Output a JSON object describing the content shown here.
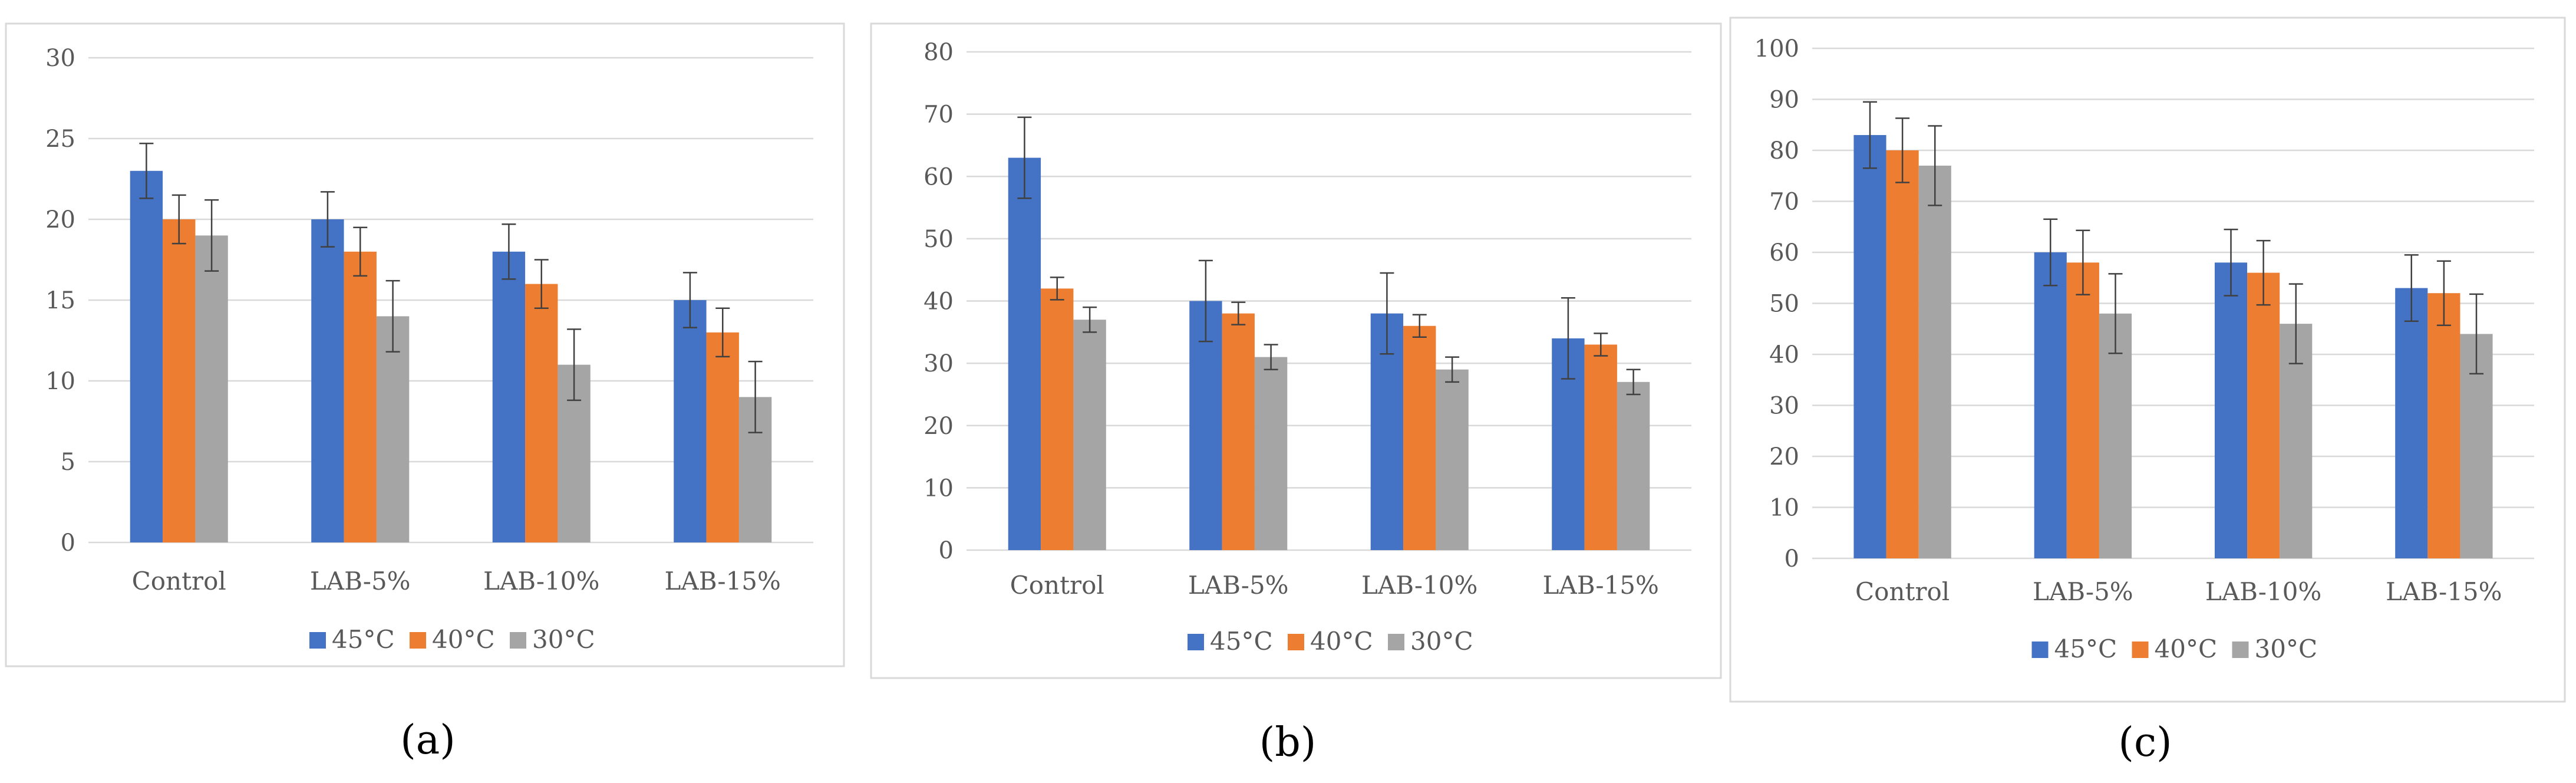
{
  "series_colors": [
    "#4472C4",
    "#ED7D31",
    "#A5A5A5"
  ],
  "chart_data": [
    {
      "type": "bar",
      "panel_label": "(a)",
      "categories": [
        "Control",
        "LAB-5%",
        "LAB-10%",
        "LAB-15%"
      ],
      "series": [
        {
          "name": "45°C",
          "values": [
            23,
            20,
            18,
            15
          ],
          "errors": [
            1.7,
            1.7,
            1.7,
            1.7
          ]
        },
        {
          "name": "40°C",
          "values": [
            20,
            18,
            16,
            13
          ],
          "errors": [
            1.5,
            1.5,
            1.5,
            1.5
          ]
        },
        {
          "name": "30°C",
          "values": [
            19,
            14,
            11,
            9
          ],
          "errors": [
            2.2,
            2.2,
            2.2,
            2.2
          ]
        }
      ],
      "ylim": [
        0,
        30
      ],
      "yticks": [
        0,
        5,
        10,
        15,
        20,
        25,
        30
      ],
      "grid": true,
      "legend": "bottom",
      "title": "",
      "xlabel": "",
      "ylabel": ""
    },
    {
      "type": "bar",
      "panel_label": "(b)",
      "categories": [
        "Control",
        "LAB-5%",
        "LAB-10%",
        "LAB-15%"
      ],
      "series": [
        {
          "name": "45°C",
          "values": [
            63,
            40,
            38,
            34
          ],
          "errors": [
            6.5,
            6.5,
            6.5,
            6.5
          ]
        },
        {
          "name": "40°C",
          "values": [
            42,
            38,
            36,
            33
          ],
          "errors": [
            1.8,
            1.8,
            1.8,
            1.8
          ]
        },
        {
          "name": "30°C",
          "values": [
            37,
            31,
            29,
            27
          ],
          "errors": [
            2,
            2,
            2,
            2
          ]
        }
      ],
      "ylim": [
        0,
        80
      ],
      "yticks": [
        0,
        10,
        20,
        30,
        40,
        50,
        60,
        70,
        80
      ],
      "grid": true,
      "legend": "bottom",
      "title": "",
      "xlabel": "",
      "ylabel": ""
    },
    {
      "type": "bar",
      "panel_label": "(c)",
      "categories": [
        "Control",
        "LAB-5%",
        "LAB-10%",
        "LAB-15%"
      ],
      "series": [
        {
          "name": "45°C",
          "values": [
            83,
            60,
            58,
            53
          ],
          "errors": [
            6.5,
            6.5,
            6.5,
            6.5
          ]
        },
        {
          "name": "40°C",
          "values": [
            80,
            58,
            56,
            52
          ],
          "errors": [
            6.3,
            6.3,
            6.3,
            6.3
          ]
        },
        {
          "name": "30°C",
          "values": [
            77,
            48,
            46,
            44
          ],
          "errors": [
            7.8,
            7.8,
            7.8,
            7.8
          ]
        }
      ],
      "ylim": [
        0,
        100
      ],
      "yticks": [
        0,
        10,
        20,
        30,
        40,
        50,
        60,
        70,
        80,
        90,
        100
      ],
      "grid": true,
      "legend": "bottom",
      "title": "",
      "xlabel": "",
      "ylabel": ""
    }
  ]
}
